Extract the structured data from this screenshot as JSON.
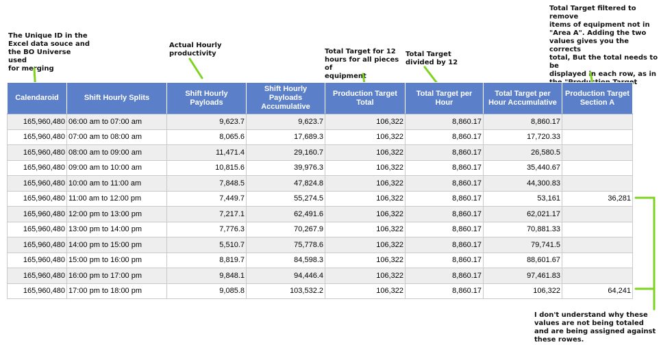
{
  "annotations": {
    "unique_id": "The Unique ID in the\nExcel data souce and\nthe BO Universe used\nfor merging",
    "actual_hourly": "Actual Hourly\nproductivity",
    "total_target_12": "Total Target for 12\nhours for all pieces of\nequipment",
    "divided_by_12": "Total Target\ndivided by 12",
    "filtered_target": "Total Target filtered to remove\nitems of equipment not in\n\"Area A\". Adding the two\nvalues gives you the corrects\ntotal, But the total needs to be\ndisplayed in each row, as in\nthe \"Production Target Total\"\ncolumn",
    "dont_understand": "I don't understand why these\nvalues are not being totaled\nand are being assigned against\nthese rowes."
  },
  "colors": {
    "header_bg": "#5b7fc9",
    "connector": "#7ed321"
  },
  "table": {
    "headers": [
      "Calendaroid",
      "Shift Hourly Splits",
      "Shift Hourly Payloads",
      "Shift Hourly Payloads Accumulative",
      "Production Target Total",
      "Total Target per Hour",
      "Total Target per Hour Accumulative",
      "Production Target Section A"
    ],
    "rows": [
      [
        "165,960,480",
        "06:00 am to 07:00 am",
        "9,623.7",
        "9,623.7",
        "106,322",
        "8,860.17",
        "8,860.17",
        ""
      ],
      [
        "165,960,480",
        "07:00 am to 08:00 am",
        "8,065.6",
        "17,689.3",
        "106,322",
        "8,860.17",
        "17,720.33",
        ""
      ],
      [
        "165,960,480",
        "08:00 am to 09:00 am",
        "11,471.4",
        "29,160.7",
        "106,322",
        "8,860.17",
        "26,580.5",
        ""
      ],
      [
        "165,960,480",
        "09:00 am to 10:00 am",
        "10,815.6",
        "39,976.3",
        "106,322",
        "8,860.17",
        "35,440.67",
        ""
      ],
      [
        "165,960,480",
        "10:00 am to 11:00 am",
        "7,848.5",
        "47,824.8",
        "106,322",
        "8,860.17",
        "44,300.83",
        ""
      ],
      [
        "165,960,480",
        "11:00 am to 12:00 pm",
        "7,449.7",
        "55,274.5",
        "106,322",
        "8,860.17",
        "53,161",
        "36,281"
      ],
      [
        "165,960,480",
        "12:00 pm to 13:00 pm",
        "7,217.1",
        "62,491.6",
        "106,322",
        "8,860.17",
        "62,021.17",
        ""
      ],
      [
        "165,960,480",
        "13:00 pm to 14:00 pm",
        "7,776.3",
        "70,267.9",
        "106,322",
        "8,860.17",
        "70,881.33",
        ""
      ],
      [
        "165,960,480",
        "14:00 pm to 15:00 pm",
        "5,510.7",
        "75,778.6",
        "106,322",
        "8,860.17",
        "79,741.5",
        ""
      ],
      [
        "165,960,480",
        "15:00 pm to 16:00 pm",
        "8,819.7",
        "84,598.3",
        "106,322",
        "8,860.17",
        "88,601.67",
        ""
      ],
      [
        "165,960,480",
        "16:00 pm to 17:00 pm",
        "9,848.1",
        "94,446.4",
        "106,322",
        "8,860.17",
        "97,461.83",
        ""
      ],
      [
        "165,960,480",
        "17:00 pm to 18:00 pm",
        "9,085.8",
        "103,532.2",
        "106,322",
        "8,860.17",
        "106,322",
        "64,241"
      ]
    ]
  }
}
